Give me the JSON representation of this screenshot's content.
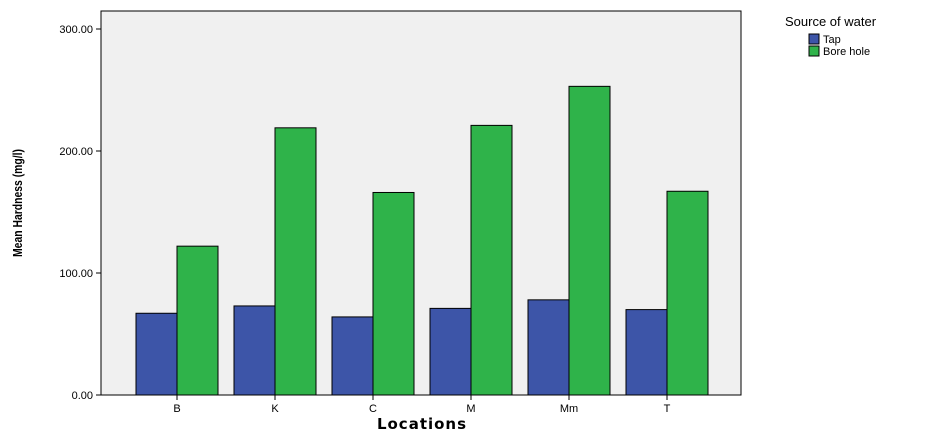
{
  "chart_data": {
    "type": "bar",
    "categories": [
      "B",
      "K",
      "C",
      "M",
      "Mm",
      "T"
    ],
    "series": [
      {
        "name": "Tap",
        "values": [
          67,
          73,
          64,
          71,
          78,
          70
        ],
        "color": "#3d55a8"
      },
      {
        "name": "Bore hole",
        "values": [
          122,
          219,
          166,
          221,
          253,
          167
        ],
        "color": "#2fb34a"
      }
    ],
    "title": "",
    "xlabel": "Locations",
    "ylabel": "Mean Hardness (mg/l)",
    "ylim": [
      0,
      300
    ],
    "yticks": [
      "0.00",
      "100.00",
      "200.00",
      "300.00"
    ],
    "ytick_values": [
      0,
      100,
      200,
      300
    ],
    "grid": false,
    "plot_background": "#f0f0f0",
    "legend": {
      "title": "Source of water",
      "placement": "right-top"
    }
  }
}
